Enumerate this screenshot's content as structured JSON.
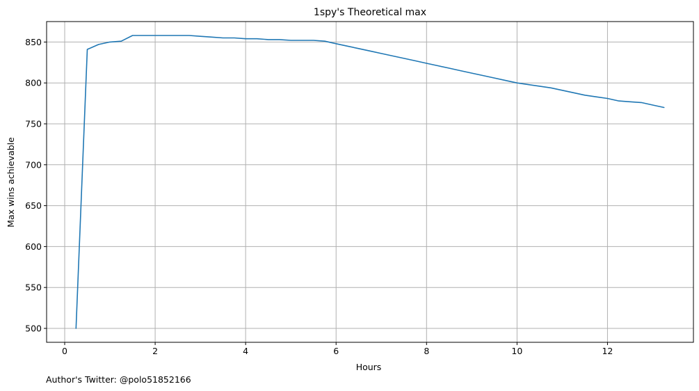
{
  "chart_data": {
    "type": "line",
    "title": "1spy's Theoretical max",
    "xlabel": "Hours",
    "ylabel": "Max wins achievable",
    "xlim": [
      -0.4,
      13.9
    ],
    "ylim": [
      483,
      875
    ],
    "xticks": [
      0,
      2,
      4,
      6,
      8,
      10,
      12
    ],
    "yticks": [
      500,
      550,
      600,
      650,
      700,
      750,
      800,
      850
    ],
    "grid": true,
    "line_color": "#1f77b4",
    "grid_color": "#b0b0b0",
    "series": [
      {
        "x": [
          0.25,
          0.5,
          0.75,
          1.0,
          1.25,
          1.5,
          1.75,
          2.0,
          2.25,
          2.5,
          2.75,
          3.0,
          3.25,
          3.5,
          3.75,
          4.0,
          4.25,
          4.5,
          4.75,
          5.0,
          5.25,
          5.5,
          5.75,
          6.0,
          6.25,
          6.5,
          6.75,
          7.0,
          7.25,
          7.5,
          7.75,
          8.0,
          8.25,
          8.5,
          8.75,
          9.0,
          9.25,
          9.5,
          9.75,
          10.0,
          10.25,
          10.5,
          10.75,
          11.0,
          11.25,
          11.5,
          11.75,
          12.0,
          12.25,
          12.5,
          12.75,
          13.0,
          13.25
        ],
        "y": [
          500,
          841,
          847,
          850,
          851,
          858,
          858,
          858,
          858,
          858,
          858,
          857,
          856,
          855,
          855,
          854,
          854,
          853,
          853,
          852,
          852,
          852,
          851,
          848,
          845,
          842,
          839,
          836,
          833,
          830,
          827,
          824,
          821,
          818,
          815,
          812,
          809,
          806,
          803,
          800,
          798,
          796,
          794,
          791,
          788,
          785,
          783,
          781,
          778,
          777,
          776,
          773,
          770
        ]
      }
    ]
  },
  "footer": {
    "note": "Author's Twitter: @polo51852166"
  }
}
